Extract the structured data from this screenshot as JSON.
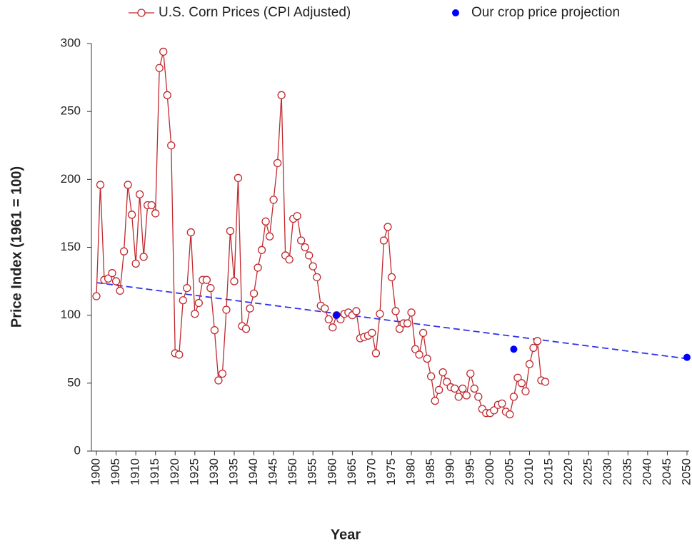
{
  "chart_data": {
    "type": "line",
    "xlabel": "Year",
    "ylabel": "Price Index (1961 = 100)",
    "xlim": [
      1900,
      2050
    ],
    "ylim": [
      0,
      300
    ],
    "xticks": [
      1900,
      1905,
      1910,
      1915,
      1920,
      1925,
      1930,
      1935,
      1940,
      1945,
      1950,
      1955,
      1960,
      1965,
      1970,
      1975,
      1980,
      1985,
      1990,
      1995,
      2000,
      2005,
      2010,
      2015,
      2020,
      2025,
      2030,
      2035,
      2040,
      2045,
      2050
    ],
    "yticks": [
      0,
      50,
      100,
      150,
      200,
      250,
      300
    ],
    "legend": "top",
    "series": [
      {
        "name": "U.S. Corn Prices (CPI Adjusted)",
        "color": "#c0282d",
        "marker": "open-circle",
        "x": [
          1900,
          1901,
          1902,
          1903,
          1904,
          1905,
          1906,
          1907,
          1908,
          1909,
          1910,
          1911,
          1912,
          1913,
          1914,
          1915,
          1916,
          1917,
          1918,
          1919,
          1920,
          1921,
          1922,
          1923,
          1924,
          1925,
          1926,
          1927,
          1928,
          1929,
          1930,
          1931,
          1932,
          1933,
          1934,
          1935,
          1936,
          1937,
          1938,
          1939,
          1940,
          1941,
          1942,
          1943,
          1944,
          1945,
          1946,
          1947,
          1948,
          1949,
          1950,
          1951,
          1952,
          1953,
          1954,
          1955,
          1956,
          1957,
          1958,
          1959,
          1960,
          1961,
          1962,
          1963,
          1964,
          1965,
          1966,
          1967,
          1968,
          1969,
          1970,
          1971,
          1972,
          1973,
          1974,
          1975,
          1976,
          1977,
          1978,
          1979,
          1980,
          1981,
          1982,
          1983,
          1984,
          1985,
          1986,
          1987,
          1988,
          1989,
          1990,
          1991,
          1992,
          1993,
          1994,
          1995,
          1996,
          1997,
          1998,
          1999,
          2000,
          2001,
          2002,
          2003,
          2004,
          2005,
          2006,
          2007,
          2008,
          2009,
          2010,
          2011,
          2012,
          2013,
          2014
        ],
        "values": [
          114,
          196,
          126,
          127,
          131,
          125,
          118,
          147,
          196,
          174,
          138,
          189,
          143,
          181,
          181,
          175,
          282,
          294,
          262,
          225,
          72,
          71,
          111,
          120,
          161,
          101,
          109,
          126,
          126,
          120,
          89,
          52,
          57,
          104,
          162,
          125,
          201,
          92,
          90,
          105,
          116,
          135,
          148,
          169,
          158,
          185,
          212,
          262,
          144,
          141,
          171,
          173,
          155,
          150,
          144,
          136,
          128,
          107,
          105,
          97,
          91,
          100,
          97,
          101,
          102,
          100,
          103,
          83,
          84,
          85,
          87,
          72,
          101,
          155,
          165,
          128,
          103,
          90,
          94,
          94,
          102,
          75,
          71,
          87,
          68,
          55,
          37,
          45,
          58,
          51,
          47,
          46,
          40,
          46,
          41,
          57,
          46,
          40,
          31,
          28,
          28,
          30,
          34,
          35,
          29,
          27,
          40,
          54,
          50,
          44,
          64,
          76,
          81,
          52,
          51
        ]
      },
      {
        "name": "Our crop price projection",
        "color": "#0000ff",
        "marker": "dot",
        "x": [
          1961,
          2006,
          2050
        ],
        "values": [
          100,
          75,
          69
        ]
      }
    ],
    "trend": {
      "color": "#3333ee",
      "dashed": true,
      "x": [
        1900,
        2050
      ],
      "values": [
        124,
        68
      ]
    }
  }
}
